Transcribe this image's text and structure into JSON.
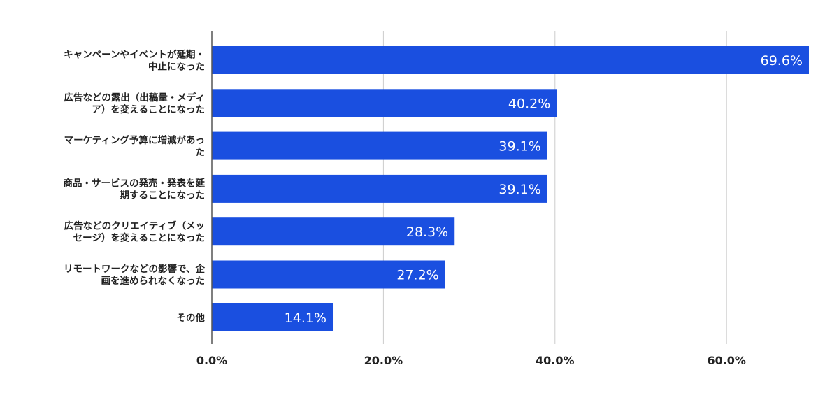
{
  "chart_data": {
    "type": "bar",
    "orientation": "horizontal",
    "categories": [
      [
        "キャンペーンやイベントが延期・",
        "中止になった"
      ],
      [
        "広告などの露出（出稿量・メディ",
        "ア）を変えることになった"
      ],
      [
        "マーケティング予算に増減があっ",
        "た"
      ],
      [
        "商品・サービスの発売・発表を延",
        "期することになった"
      ],
      [
        "広告などのクリエイティブ（メッ",
        "セージ）を変えることになった"
      ],
      [
        "リモートワークなどの影響で、企",
        "画を進められなくなった"
      ],
      [
        "その他"
      ]
    ],
    "values": [
      69.6,
      40.2,
      39.1,
      39.1,
      28.3,
      27.2,
      14.1
    ],
    "data_labels": [
      "69.6%",
      "40.2%",
      "39.1%",
      "39.1%",
      "28.3%",
      "27.2%",
      "14.1%"
    ],
    "x_ticks": [
      0,
      20,
      40,
      60
    ],
    "x_tick_labels": [
      "0.0%",
      "20.0%",
      "40.0%",
      "60.0%"
    ],
    "xlim": [
      0,
      70
    ],
    "grid": true,
    "bar_color": "#1a4fe0",
    "grid_color": "#cccccc",
    "axis_color": "#555555"
  }
}
